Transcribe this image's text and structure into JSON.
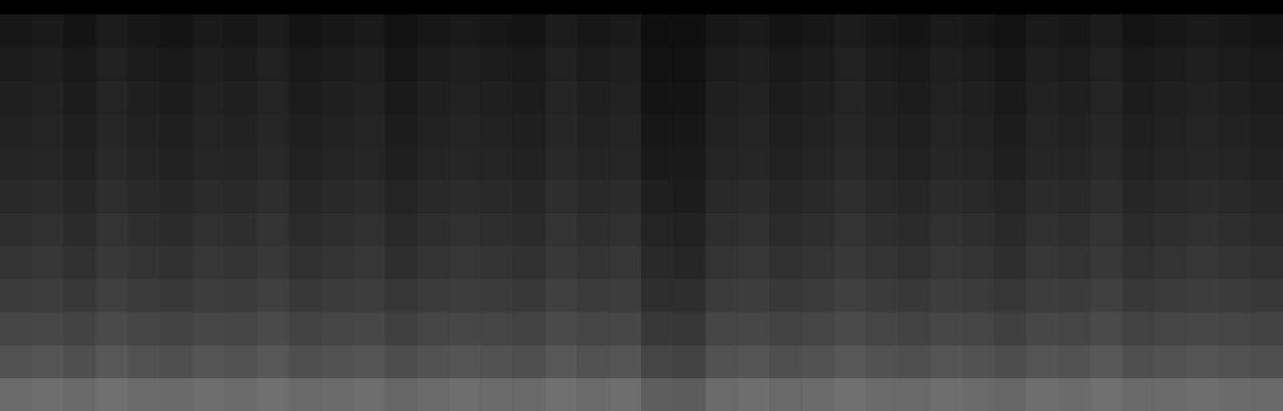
{
  "chart_data": {
    "type": "heatmap",
    "tick_labels": false,
    "grid": false,
    "zlim": [
      0,
      100
    ],
    "cells": [
      [
        42,
        43,
        41,
        44,
        42,
        41,
        43,
        42,
        44,
        41,
        42,
        43,
        40,
        42,
        43,
        42,
        41,
        44,
        42,
        43,
        37,
        36,
        42,
        43,
        41,
        42,
        44,
        42,
        41,
        43,
        42,
        40,
        43,
        42,
        44,
        41,
        42,
        43,
        42,
        41
      ],
      [
        32,
        33,
        31,
        34,
        32,
        31,
        33,
        32,
        34,
        31,
        32,
        33,
        30,
        32,
        33,
        32,
        31,
        34,
        32,
        33,
        27,
        26,
        32,
        33,
        31,
        32,
        34,
        32,
        31,
        33,
        32,
        30,
        33,
        32,
        34,
        31,
        32,
        33,
        32,
        31
      ],
      [
        27,
        28,
        26,
        29,
        27,
        26,
        28,
        27,
        29,
        26,
        27,
        28,
        25,
        27,
        28,
        27,
        26,
        29,
        27,
        28,
        22,
        21,
        27,
        28,
        26,
        27,
        29,
        27,
        26,
        28,
        27,
        25,
        28,
        27,
        29,
        26,
        27,
        28,
        27,
        26
      ],
      [
        23,
        24,
        22,
        25,
        23,
        22,
        24,
        23,
        25,
        22,
        23,
        24,
        21,
        23,
        24,
        23,
        22,
        25,
        23,
        24,
        18,
        18,
        23,
        24,
        22,
        23,
        25,
        23,
        22,
        24,
        23,
        21,
        24,
        23,
        25,
        22,
        23,
        24,
        23,
        22
      ],
      [
        20,
        21,
        19,
        22,
        20,
        19,
        21,
        20,
        22,
        19,
        20,
        21,
        18,
        20,
        21,
        20,
        19,
        22,
        20,
        21,
        16,
        15,
        20,
        21,
        19,
        20,
        22,
        20,
        19,
        21,
        20,
        18,
        21,
        20,
        22,
        19,
        20,
        21,
        20,
        19
      ],
      [
        18,
        19,
        17,
        20,
        18,
        17,
        19,
        18,
        20,
        17,
        18,
        19,
        16,
        18,
        19,
        18,
        17,
        20,
        18,
        19,
        14,
        13,
        18,
        19,
        17,
        18,
        20,
        18,
        17,
        19,
        18,
        16,
        19,
        18,
        20,
        17,
        18,
        19,
        18,
        17
      ],
      [
        16,
        17,
        15,
        18,
        16,
        15,
        17,
        16,
        18,
        15,
        16,
        17,
        14,
        16,
        17,
        16,
        15,
        18,
        16,
        17,
        12,
        11,
        16,
        17,
        15,
        16,
        18,
        16,
        15,
        17,
        16,
        14,
        17,
        16,
        18,
        15,
        16,
        17,
        16,
        15
      ],
      [
        14,
        15,
        13,
        16,
        14,
        13,
        15,
        14,
        16,
        13,
        14,
        15,
        12,
        14,
        15,
        14,
        13,
        16,
        14,
        15,
        10,
        10,
        14,
        15,
        13,
        14,
        16,
        14,
        13,
        15,
        14,
        12,
        15,
        14,
        16,
        13,
        14,
        15,
        14,
        13
      ],
      [
        13,
        14,
        12,
        15,
        13,
        12,
        14,
        13,
        15,
        12,
        13,
        14,
        11,
        13,
        14,
        13,
        12,
        15,
        13,
        14,
        9,
        9,
        13,
        14,
        12,
        13,
        15,
        13,
        12,
        14,
        13,
        11,
        14,
        13,
        15,
        12,
        13,
        14,
        13,
        12
      ],
      [
        12,
        13,
        11,
        14,
        12,
        11,
        13,
        12,
        14,
        11,
        12,
        13,
        10,
        12,
        13,
        12,
        11,
        14,
        12,
        13,
        8,
        8,
        12,
        13,
        11,
        12,
        14,
        12,
        11,
        13,
        12,
        10,
        13,
        12,
        14,
        11,
        12,
        13,
        12,
        11
      ],
      [
        11,
        12,
        10,
        13,
        11,
        10,
        12,
        11,
        13,
        10,
        11,
        12,
        9,
        11,
        12,
        11,
        10,
        13,
        11,
        12,
        7,
        7,
        11,
        12,
        10,
        11,
        13,
        11,
        10,
        12,
        11,
        9,
        12,
        11,
        13,
        10,
        11,
        12,
        11,
        10
      ],
      [
        9,
        10,
        8,
        11,
        9,
        8,
        10,
        9,
        11,
        8,
        9,
        10,
        7,
        9,
        10,
        9,
        8,
        11,
        9,
        10,
        6,
        6,
        9,
        10,
        8,
        9,
        11,
        9,
        8,
        10,
        9,
        7,
        10,
        9,
        11,
        8,
        9,
        10,
        9,
        8
      ]
    ]
  }
}
